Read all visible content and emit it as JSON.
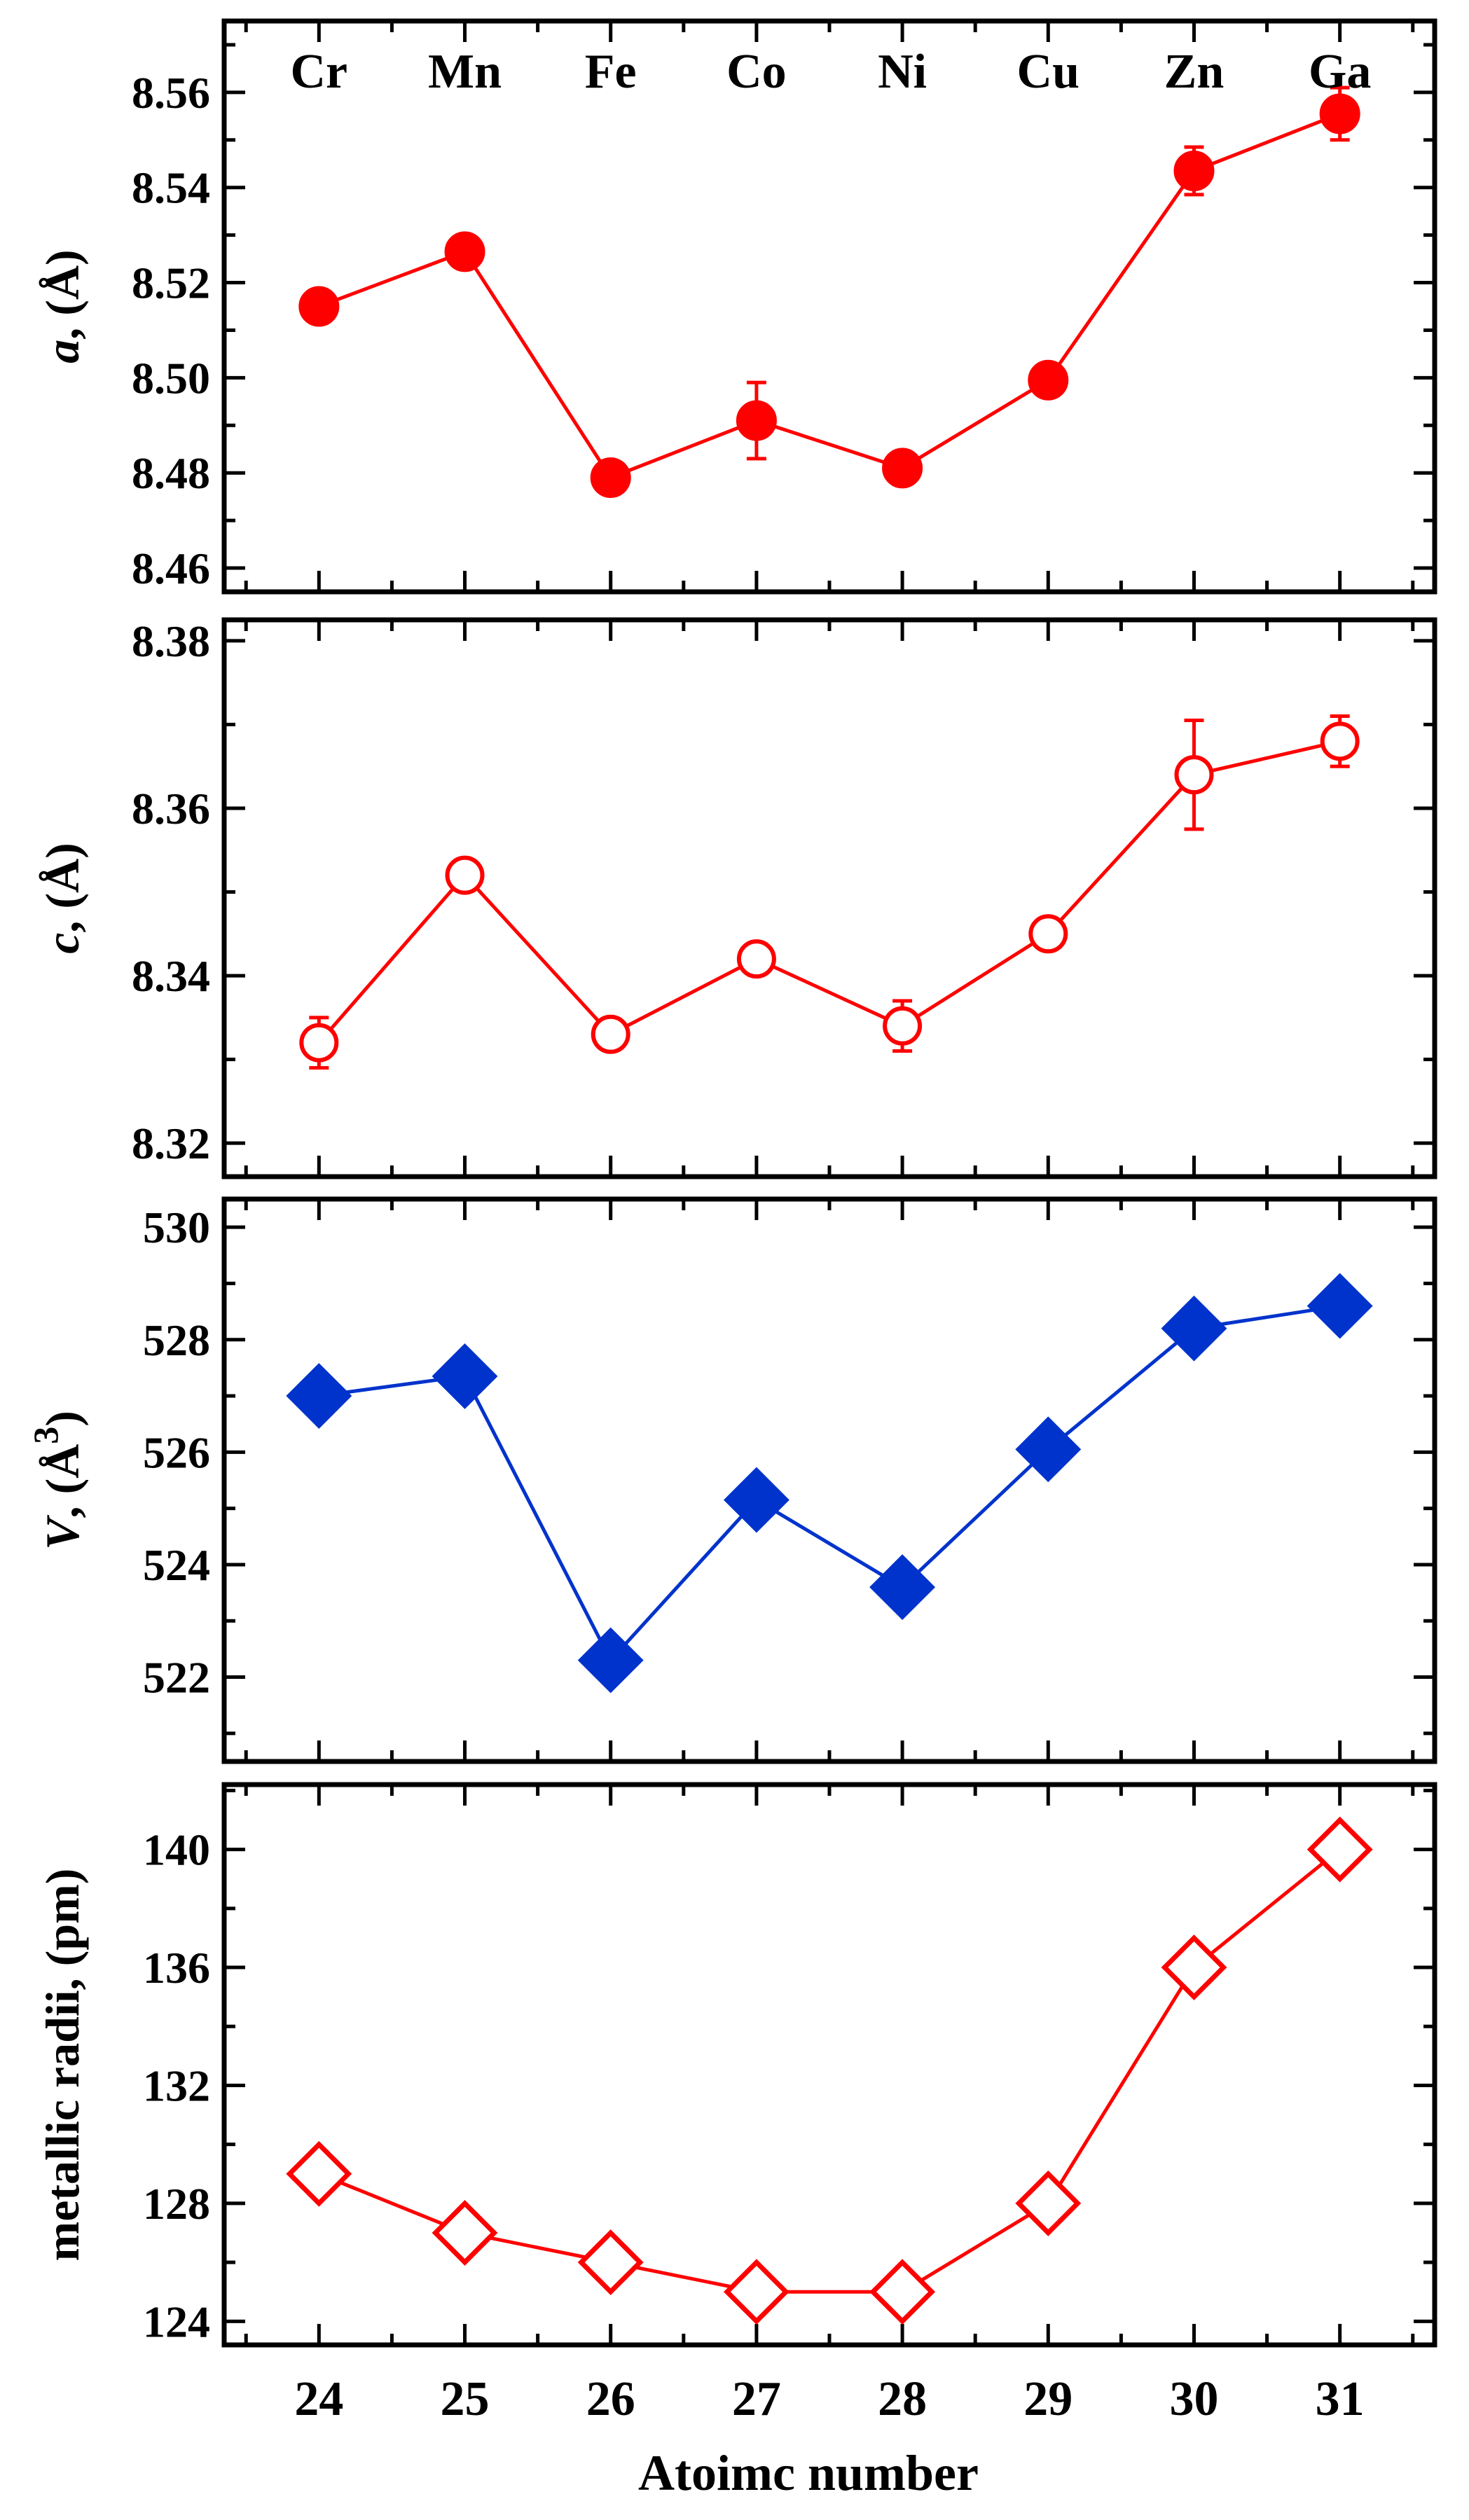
{
  "figure": {
    "xlabel": "Atoimc number",
    "element_labels": [
      "Cr",
      "Mn",
      "Fe",
      "Co",
      "Ni",
      "Cu",
      "Zn",
      "Ga"
    ]
  },
  "chart_data": [
    {
      "type": "line",
      "ylabel": "a, (Å)",
      "ylabel_italic": "a",
      "ylabel_rest": ", (Å)",
      "x": [
        24,
        25,
        26,
        27,
        28,
        29,
        30,
        31
      ],
      "xlim": [
        23.35,
        31.65
      ],
      "ylim": [
        8.455,
        8.575
      ],
      "yticks": [
        8.46,
        8.48,
        8.5,
        8.52,
        8.54,
        8.56
      ],
      "ytick_labels": [
        "8.46",
        "8.48",
        "8.50",
        "8.52",
        "8.54",
        "8.56"
      ],
      "ytick_decimals": 2,
      "color": "#ff0000",
      "marker": "circle",
      "filled": true,
      "series": [
        {
          "values": [
            8.515,
            8.5265,
            8.479,
            8.491,
            8.481,
            8.4995,
            8.5435,
            8.5555
          ],
          "errors": [
            0.003,
            0.003,
            0.0015,
            0.008,
            0.0015,
            0.0015,
            0.005,
            0.0055
          ]
        }
      ]
    },
    {
      "type": "line",
      "ylabel": "c, (Å)",
      "ylabel_italic": "c",
      "ylabel_rest": ", (Å)",
      "x": [
        24,
        25,
        26,
        27,
        28,
        29,
        30,
        31
      ],
      "xlim": [
        23.35,
        31.65
      ],
      "ylim": [
        8.316,
        8.3825
      ],
      "yticks": [
        8.32,
        8.34,
        8.36,
        8.38
      ],
      "ytick_labels": [
        "8.32",
        "8.34",
        "8.36",
        "8.38"
      ],
      "ytick_decimals": 2,
      "color": "#ff0000",
      "marker": "circle",
      "filled": false,
      "series": [
        {
          "values": [
            8.332,
            8.352,
            8.333,
            8.342,
            8.334,
            8.345,
            8.364,
            8.368
          ],
          "errors": [
            0.003,
            0.0015,
            0.0015,
            0.0015,
            0.003,
            0.0015,
            0.0065,
            0.003
          ]
        }
      ]
    },
    {
      "type": "line",
      "ylabel": "V, (Å³)",
      "ylabel_italic": "V",
      "ylabel_rest": ", (Å",
      "ylabel_sup": "3",
      "ylabel_close": ")",
      "x": [
        24,
        25,
        26,
        27,
        28,
        29,
        30,
        31
      ],
      "xlim": [
        23.35,
        31.65
      ],
      "ylim": [
        520.5,
        530.5
      ],
      "yticks": [
        522,
        524,
        526,
        528,
        530
      ],
      "ytick_labels": [
        "522",
        "524",
        "526",
        "528",
        "530"
      ],
      "ytick_decimals": 0,
      "color": "#0033cc",
      "marker": "diamond",
      "filled": true,
      "series": [
        {
          "values": [
            527.0,
            527.35,
            522.3,
            525.15,
            523.6,
            526.05,
            528.2,
            528.6
          ],
          "errors": [
            0,
            0,
            0,
            0,
            0,
            0,
            0,
            0
          ]
        }
      ]
    },
    {
      "type": "line",
      "ylabel": "metallic radii, (pm)",
      "ylabel_italic": "",
      "ylabel_rest": "metallic radii, (pm)",
      "x": [
        24,
        25,
        26,
        27,
        28,
        29,
        30,
        31
      ],
      "xlim": [
        23.35,
        31.65
      ],
      "ylim": [
        123.2,
        142.2
      ],
      "yticks": [
        124,
        128,
        132,
        136,
        140
      ],
      "ytick_labels": [
        "124",
        "128",
        "132",
        "136",
        "140"
      ],
      "ytick_decimals": 0,
      "color": "#ff0000",
      "marker": "diamond",
      "filled": false,
      "series": [
        {
          "values": [
            129,
            127,
            126,
            125,
            125,
            128,
            136,
            140
          ],
          "errors": [
            0,
            0,
            0,
            0,
            0,
            0,
            0,
            0
          ]
        }
      ]
    }
  ]
}
